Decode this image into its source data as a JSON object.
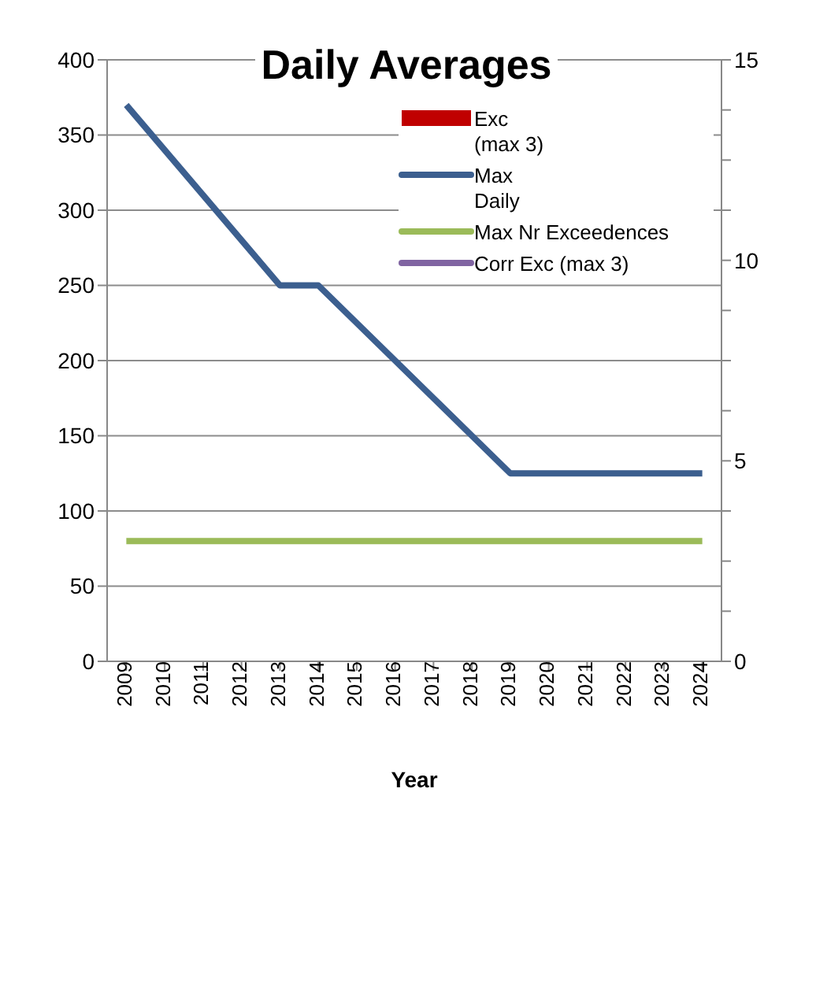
{
  "chart_data": {
    "type": "line",
    "title": "Daily Averages",
    "xlabel": "Year",
    "categories": [
      "2009",
      "2010",
      "2011",
      "2012",
      "2013",
      "2014",
      "2015",
      "2016",
      "2017",
      "2018",
      "2019",
      "2020",
      "2021",
      "2022",
      "2023",
      "2024"
    ],
    "series": [
      {
        "name": "Exc (max 3)",
        "type": "bar",
        "axis": "y2",
        "color": "#c00000",
        "values": [
          null,
          null,
          null,
          null,
          null,
          null,
          null,
          null,
          null,
          null,
          null,
          null,
          null,
          null,
          null,
          null
        ]
      },
      {
        "name": "Max Daily",
        "color": "#3c5f8f",
        "values": [
          370,
          340,
          310,
          280,
          250,
          250,
          225,
          200,
          175,
          150,
          125,
          125,
          125,
          125,
          125,
          125
        ]
      },
      {
        "name": "Max Nr Exceedences",
        "axis": "y2",
        "color": "#9bbb59",
        "values": [
          3,
          3,
          3,
          3,
          3,
          3,
          3,
          3,
          3,
          3,
          3,
          3,
          3,
          3,
          3,
          3
        ]
      },
      {
        "name": "Corr Exc (max 3)",
        "axis": "y2",
        "color": "#8064a2",
        "values": [
          null,
          null,
          null,
          null,
          null,
          null,
          null,
          null,
          null,
          null,
          null,
          null,
          null,
          null,
          null,
          null
        ]
      }
    ],
    "ylim": [
      0,
      400
    ],
    "yticks": [
      0,
      50,
      100,
      150,
      200,
      250,
      300,
      350,
      400
    ],
    "y2lim": [
      0,
      15
    ],
    "y2ticks": [
      0,
      {
        "value": 1.25,
        "label": null
      },
      {
        "value": 2.5,
        "label": null
      },
      {
        "value": 3.75,
        "label": null
      },
      5,
      {
        "value": 6.25,
        "label": null
      },
      {
        "value": 7.5,
        "label": null
      },
      {
        "value": 8.75,
        "label": null
      },
      10,
      {
        "value": 11.25,
        "label": null
      },
      {
        "value": 12.5,
        "label": null
      },
      {
        "value": 13.75,
        "label": null
      },
      15
    ],
    "grid": "y",
    "legend": "top right",
    "marker": "none",
    "line_style": "solid"
  }
}
